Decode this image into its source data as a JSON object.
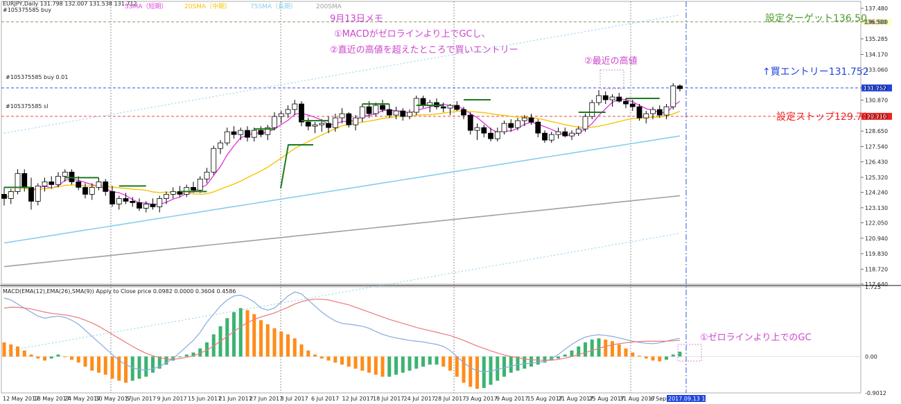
{
  "header": {
    "symbol_line": "EURJPY,Daily  131.798 132.007 131.538 131.712",
    "symbol_sub": "#105375585 buy",
    "legend": [
      {
        "label": "5SMA（短期）",
        "color": "#e040e0"
      },
      {
        "label": "20SMA（中期）",
        "color": "#f5c400"
      },
      {
        "label": "75SMA（長期）",
        "color": "#87ceeb"
      },
      {
        "label": "200SMA",
        "color": "#a0a0a0"
      }
    ]
  },
  "order_labels": {
    "buy": "#105375585 buy 0.01",
    "sl": "#105375585 sl"
  },
  "annotations": {
    "memo_title": "9月13日メモ",
    "memo_1": "①MACDがゼロラインより上でGCし、",
    "memo_2": "②直近の高値を超えたところで買いエントリー",
    "recent_high": "②最近の高値",
    "target": "設定ターゲット136.50",
    "entry": "↑買エントリー131.752",
    "stop": "設定ストップ129.71",
    "macd_gc": "①ゼロラインより上でのGC"
  },
  "colors": {
    "target": "#4a9a2a",
    "entry": "#2244dd",
    "stop": "#ee2222",
    "note": "#cc44cc",
    "sma5": "#e040e0",
    "sma20": "#f5c400",
    "sma75": "#87ceeb",
    "sma200": "#a0a0a0",
    "macd_up": "#3cb371",
    "macd_down": "#ff8c1a"
  },
  "chart_data": {
    "type": "candlestick",
    "price_axis": {
      "ticks": [
        "137.480",
        "136.500",
        "135.285",
        "134.170",
        "133.060",
        "131.752",
        "130.870",
        "129.710",
        "128.650",
        "127.540",
        "126.430",
        "125.320",
        "124.240",
        "123.130",
        "122.050",
        "120.940",
        "119.830",
        "118.720",
        "117.640"
      ],
      "ylim": [
        117.64,
        137.48
      ]
    },
    "levels": {
      "target": 136.5,
      "entry": 131.752,
      "stop": 129.71,
      "entry_tag": "131.752",
      "stop_tag": "129.710",
      "target_tag": "136.500"
    },
    "x_labels": [
      "12 May 2017",
      "18 May 2017",
      "24 May 2017",
      "30 May 2017",
      "5 Jun 2017",
      "9 Jun 2017",
      "15 Jun 2017",
      "21 Jun 2017",
      "27 Jun 2017",
      "3 Jul 2017",
      "6 Jul 2017",
      "12 Jul 2017",
      "18 Jul 2017",
      "24 Jul 2017",
      "28 Jul 2017",
      "3 Aug 2017",
      "9 Aug 2017",
      "15 Aug 2017",
      "21 Aug 2017",
      "25 Aug 2017",
      "31 Aug 2017",
      "6 Sep 2017"
    ],
    "cursor_label": "2017.09.13 19:59",
    "candles": [
      {
        "o": 124.1,
        "h": 124.6,
        "l": 123.3,
        "c": 123.8
      },
      {
        "o": 123.8,
        "h": 124.5,
        "l": 123.4,
        "c": 124.3
      },
      {
        "o": 124.3,
        "h": 125.9,
        "l": 124.1,
        "c": 125.6
      },
      {
        "o": 125.6,
        "h": 125.9,
        "l": 124.3,
        "c": 124.6
      },
      {
        "o": 124.6,
        "h": 125.3,
        "l": 123.0,
        "c": 123.6
      },
      {
        "o": 123.6,
        "h": 124.9,
        "l": 123.3,
        "c": 124.7
      },
      {
        "o": 124.7,
        "h": 125.3,
        "l": 124.3,
        "c": 125.0
      },
      {
        "o": 125.0,
        "h": 125.4,
        "l": 124.5,
        "c": 124.8
      },
      {
        "o": 124.8,
        "h": 125.7,
        "l": 124.6,
        "c": 125.4
      },
      {
        "o": 125.4,
        "h": 125.9,
        "l": 125.0,
        "c": 125.7
      },
      {
        "o": 125.7,
        "h": 125.9,
        "l": 124.8,
        "c": 125.0
      },
      {
        "o": 125.0,
        "h": 125.4,
        "l": 124.4,
        "c": 124.6
      },
      {
        "o": 124.6,
        "h": 124.9,
        "l": 123.8,
        "c": 124.1
      },
      {
        "o": 124.1,
        "h": 124.9,
        "l": 123.7,
        "c": 124.6
      },
      {
        "o": 124.6,
        "h": 125.3,
        "l": 124.4,
        "c": 125.0
      },
      {
        "o": 125.0,
        "h": 125.2,
        "l": 124.0,
        "c": 124.3
      },
      {
        "o": 124.3,
        "h": 124.7,
        "l": 123.2,
        "c": 123.4
      },
      {
        "o": 123.4,
        "h": 124.0,
        "l": 123.0,
        "c": 123.8
      },
      {
        "o": 123.8,
        "h": 124.2,
        "l": 123.4,
        "c": 123.6
      },
      {
        "o": 123.6,
        "h": 123.9,
        "l": 123.2,
        "c": 123.5
      },
      {
        "o": 123.5,
        "h": 123.8,
        "l": 122.9,
        "c": 123.1
      },
      {
        "o": 123.1,
        "h": 123.6,
        "l": 122.8,
        "c": 123.4
      },
      {
        "o": 123.4,
        "h": 123.8,
        "l": 123.0,
        "c": 123.2
      },
      {
        "o": 123.2,
        "h": 124.0,
        "l": 122.8,
        "c": 123.8
      },
      {
        "o": 123.8,
        "h": 124.3,
        "l": 123.4,
        "c": 124.1
      },
      {
        "o": 124.1,
        "h": 124.6,
        "l": 123.8,
        "c": 124.3
      },
      {
        "o": 124.3,
        "h": 124.7,
        "l": 123.9,
        "c": 124.1
      },
      {
        "o": 124.1,
        "h": 124.8,
        "l": 123.9,
        "c": 124.6
      },
      {
        "o": 124.6,
        "h": 125.0,
        "l": 124.2,
        "c": 124.4
      },
      {
        "o": 124.4,
        "h": 125.4,
        "l": 124.2,
        "c": 125.2
      },
      {
        "o": 125.2,
        "h": 126.0,
        "l": 124.9,
        "c": 125.7
      },
      {
        "o": 125.7,
        "h": 127.6,
        "l": 125.5,
        "c": 127.4
      },
      {
        "o": 127.4,
        "h": 128.0,
        "l": 127.0,
        "c": 127.8
      },
      {
        "o": 127.8,
        "h": 128.9,
        "l": 127.6,
        "c": 128.6
      },
      {
        "o": 128.6,
        "h": 129.0,
        "l": 128.1,
        "c": 128.4
      },
      {
        "o": 128.4,
        "h": 128.9,
        "l": 128.0,
        "c": 128.7
      },
      {
        "o": 128.7,
        "h": 129.0,
        "l": 127.9,
        "c": 128.2
      },
      {
        "o": 128.2,
        "h": 128.9,
        "l": 127.9,
        "c": 128.7
      },
      {
        "o": 128.7,
        "h": 129.0,
        "l": 128.2,
        "c": 128.4
      },
      {
        "o": 128.4,
        "h": 129.1,
        "l": 128.0,
        "c": 128.9
      },
      {
        "o": 128.9,
        "h": 130.0,
        "l": 128.7,
        "c": 129.7
      },
      {
        "o": 129.7,
        "h": 130.1,
        "l": 129.2,
        "c": 129.9
      },
      {
        "o": 129.9,
        "h": 130.5,
        "l": 129.6,
        "c": 130.2
      },
      {
        "o": 130.2,
        "h": 130.9,
        "l": 129.8,
        "c": 130.6
      },
      {
        "o": 130.6,
        "h": 130.8,
        "l": 129.0,
        "c": 129.3
      },
      {
        "o": 129.3,
        "h": 129.6,
        "l": 128.7,
        "c": 129.0
      },
      {
        "o": 129.0,
        "h": 129.3,
        "l": 128.5,
        "c": 129.1
      },
      {
        "o": 129.1,
        "h": 129.5,
        "l": 128.6,
        "c": 129.2
      },
      {
        "o": 129.2,
        "h": 129.7,
        "l": 128.5,
        "c": 128.9
      },
      {
        "o": 128.9,
        "h": 129.9,
        "l": 128.6,
        "c": 129.6
      },
      {
        "o": 129.6,
        "h": 130.3,
        "l": 129.2,
        "c": 129.9
      },
      {
        "o": 129.9,
        "h": 130.0,
        "l": 128.9,
        "c": 129.1
      },
      {
        "o": 129.1,
        "h": 129.8,
        "l": 128.7,
        "c": 129.6
      },
      {
        "o": 129.6,
        "h": 130.6,
        "l": 129.3,
        "c": 130.4
      },
      {
        "o": 130.4,
        "h": 130.8,
        "l": 129.6,
        "c": 129.9
      },
      {
        "o": 129.9,
        "h": 130.7,
        "l": 129.7,
        "c": 130.5
      },
      {
        "o": 130.5,
        "h": 130.9,
        "l": 130.0,
        "c": 130.2
      },
      {
        "o": 130.2,
        "h": 130.6,
        "l": 129.6,
        "c": 129.8
      },
      {
        "o": 129.8,
        "h": 130.4,
        "l": 129.5,
        "c": 130.1
      },
      {
        "o": 130.1,
        "h": 130.3,
        "l": 129.4,
        "c": 129.7
      },
      {
        "o": 129.7,
        "h": 130.2,
        "l": 129.5,
        "c": 130.0
      },
      {
        "o": 130.0,
        "h": 131.2,
        "l": 129.8,
        "c": 131.0
      },
      {
        "o": 131.0,
        "h": 131.2,
        "l": 130.3,
        "c": 130.5
      },
      {
        "o": 130.5,
        "h": 130.9,
        "l": 130.0,
        "c": 130.7
      },
      {
        "o": 130.7,
        "h": 131.0,
        "l": 130.2,
        "c": 130.4
      },
      {
        "o": 130.4,
        "h": 130.7,
        "l": 130.0,
        "c": 130.3
      },
      {
        "o": 130.3,
        "h": 130.6,
        "l": 129.8,
        "c": 130.5
      },
      {
        "o": 130.5,
        "h": 130.8,
        "l": 130.1,
        "c": 130.2
      },
      {
        "o": 130.2,
        "h": 130.4,
        "l": 129.5,
        "c": 129.8
      },
      {
        "o": 129.8,
        "h": 130.0,
        "l": 128.4,
        "c": 128.7
      },
      {
        "o": 128.7,
        "h": 129.2,
        "l": 128.0,
        "c": 128.9
      },
      {
        "o": 128.9,
        "h": 129.1,
        "l": 128.2,
        "c": 128.5
      },
      {
        "o": 128.5,
        "h": 128.9,
        "l": 127.9,
        "c": 128.1
      },
      {
        "o": 128.1,
        "h": 128.9,
        "l": 127.9,
        "c": 128.6
      },
      {
        "o": 128.6,
        "h": 129.4,
        "l": 128.4,
        "c": 129.2
      },
      {
        "o": 129.2,
        "h": 129.5,
        "l": 128.6,
        "c": 128.9
      },
      {
        "o": 128.9,
        "h": 129.6,
        "l": 128.7,
        "c": 129.4
      },
      {
        "o": 129.4,
        "h": 129.8,
        "l": 129.0,
        "c": 129.6
      },
      {
        "o": 129.6,
        "h": 129.9,
        "l": 129.1,
        "c": 129.3
      },
      {
        "o": 129.3,
        "h": 129.5,
        "l": 128.2,
        "c": 128.5
      },
      {
        "o": 128.5,
        "h": 128.7,
        "l": 127.8,
        "c": 128.0
      },
      {
        "o": 128.0,
        "h": 128.6,
        "l": 127.8,
        "c": 128.4
      },
      {
        "o": 128.4,
        "h": 128.9,
        "l": 128.1,
        "c": 128.6
      },
      {
        "o": 128.6,
        "h": 128.9,
        "l": 128.2,
        "c": 128.3
      },
      {
        "o": 128.3,
        "h": 128.7,
        "l": 128.0,
        "c": 128.5
      },
      {
        "o": 128.5,
        "h": 129.0,
        "l": 128.3,
        "c": 128.8
      },
      {
        "o": 128.8,
        "h": 129.9,
        "l": 128.6,
        "c": 129.7
      },
      {
        "o": 129.7,
        "h": 130.9,
        "l": 129.5,
        "c": 130.7
      },
      {
        "o": 130.7,
        "h": 131.6,
        "l": 130.5,
        "c": 131.2
      },
      {
        "o": 131.2,
        "h": 131.5,
        "l": 130.6,
        "c": 130.9
      },
      {
        "o": 130.9,
        "h": 131.3,
        "l": 130.4,
        "c": 131.1
      },
      {
        "o": 131.1,
        "h": 131.4,
        "l": 130.7,
        "c": 130.8
      },
      {
        "o": 130.8,
        "h": 131.0,
        "l": 130.3,
        "c": 130.6
      },
      {
        "o": 130.6,
        "h": 130.9,
        "l": 130.1,
        "c": 130.4
      },
      {
        "o": 130.4,
        "h": 130.6,
        "l": 129.4,
        "c": 129.6
      },
      {
        "o": 129.6,
        "h": 130.1,
        "l": 129.2,
        "c": 129.9
      },
      {
        "o": 129.9,
        "h": 130.4,
        "l": 129.5,
        "c": 130.2
      },
      {
        "o": 130.2,
        "h": 130.5,
        "l": 129.6,
        "c": 129.8
      },
      {
        "o": 129.8,
        "h": 130.6,
        "l": 129.5,
        "c": 130.4
      },
      {
        "o": 130.4,
        "h": 132.1,
        "l": 130.2,
        "c": 131.9
      },
      {
        "o": 131.9,
        "h": 132.0,
        "l": 131.5,
        "c": 131.7
      }
    ],
    "macd_panel": {
      "label": "MACD(EMA(12),EMA(26),SMA(9)) Apply to Close price 0.0982 0.0000 0.3604 0.4586",
      "ticks": [
        "1.725",
        "0.00",
        "-0.9012"
      ],
      "ylim": [
        -0.9012,
        1.725
      ],
      "histogram": [
        0.35,
        0.3,
        0.25,
        0.15,
        0.05,
        -0.05,
        -0.1,
        -0.05,
        0.05,
        0.0,
        -0.08,
        -0.15,
        -0.25,
        -0.35,
        -0.4,
        -0.45,
        -0.55,
        -0.6,
        -0.65,
        -0.6,
        -0.55,
        -0.5,
        -0.4,
        -0.3,
        -0.2,
        -0.1,
        0.0,
        0.05,
        0.1,
        0.2,
        0.35,
        0.55,
        0.75,
        0.95,
        1.1,
        1.2,
        1.15,
        1.05,
        0.9,
        0.8,
        0.7,
        0.62,
        0.55,
        0.45,
        0.3,
        0.15,
        0.05,
        -0.05,
        -0.1,
        -0.15,
        -0.2,
        -0.25,
        -0.3,
        -0.35,
        -0.4,
        -0.45,
        -0.5,
        -0.5,
        -0.45,
        -0.4,
        -0.35,
        -0.3,
        -0.25,
        -0.2,
        -0.2,
        -0.25,
        -0.35,
        -0.5,
        -0.65,
        -0.75,
        -0.8,
        -0.78,
        -0.7,
        -0.6,
        -0.5,
        -0.4,
        -0.35,
        -0.3,
        -0.25,
        -0.2,
        -0.15,
        -0.1,
        -0.05,
        0.05,
        0.15,
        0.25,
        0.35,
        0.42,
        0.45,
        0.42,
        0.38,
        0.3,
        0.2,
        0.1,
        0.02,
        -0.05,
        -0.1,
        -0.12,
        -0.08,
        0.05,
        0.12
      ],
      "macd_line": [
        1.45,
        1.4,
        1.3,
        1.2,
        1.1,
        1.0,
        0.95,
        0.98,
        1.0,
        0.97,
        0.9,
        0.8,
        0.65,
        0.5,
        0.35,
        0.2,
        0.05,
        -0.1,
        -0.2,
        -0.28,
        -0.32,
        -0.34,
        -0.3,
        -0.25,
        -0.15,
        -0.05,
        0.1,
        0.25,
        0.4,
        0.6,
        0.85,
        1.05,
        1.25,
        1.4,
        1.5,
        1.52,
        1.45,
        1.35,
        1.2,
        1.15,
        1.2,
        1.35,
        1.5,
        1.6,
        1.55,
        1.4,
        1.25,
        1.1,
        0.98,
        0.88,
        0.82,
        0.8,
        0.78,
        0.75,
        0.7,
        0.62,
        0.55,
        0.5,
        0.46,
        0.43,
        0.4,
        0.38,
        0.36,
        0.33,
        0.3,
        0.25,
        0.15,
        0.0,
        -0.15,
        -0.28,
        -0.35,
        -0.38,
        -0.36,
        -0.32,
        -0.28,
        -0.24,
        -0.2,
        -0.18,
        -0.16,
        -0.15,
        -0.12,
        -0.05,
        0.05,
        0.18,
        0.3,
        0.4,
        0.48,
        0.52,
        0.54,
        0.52,
        0.5,
        0.46,
        0.42,
        0.38,
        0.35,
        0.33,
        0.32,
        0.34,
        0.38,
        0.42,
        0.45
      ],
      "signal_line": [
        1.2,
        1.22,
        1.22,
        1.2,
        1.18,
        1.14,
        1.1,
        1.07,
        1.05,
        1.03,
        1.0,
        0.96,
        0.9,
        0.83,
        0.75,
        0.65,
        0.55,
        0.45,
        0.35,
        0.25,
        0.16,
        0.08,
        0.02,
        -0.03,
        -0.06,
        -0.07,
        -0.05,
        -0.02,
        0.02,
        0.08,
        0.16,
        0.26,
        0.38,
        0.5,
        0.62,
        0.74,
        0.84,
        0.92,
        0.98,
        1.03,
        1.08,
        1.15,
        1.22,
        1.3,
        1.36,
        1.4,
        1.42,
        1.42,
        1.4,
        1.36,
        1.32,
        1.28,
        1.22,
        1.16,
        1.1,
        1.04,
        0.98,
        0.92,
        0.87,
        0.82,
        0.77,
        0.72,
        0.68,
        0.64,
        0.6,
        0.56,
        0.52,
        0.46,
        0.4,
        0.33,
        0.26,
        0.2,
        0.14,
        0.09,
        0.04,
        0.0,
        -0.03,
        -0.06,
        -0.08,
        -0.09,
        -0.1,
        -0.09,
        -0.07,
        -0.04,
        0.0,
        0.05,
        0.1,
        0.15,
        0.2,
        0.25,
        0.29,
        0.32,
        0.34,
        0.36,
        0.37,
        0.38,
        0.38,
        0.38,
        0.38,
        0.39,
        0.4
      ]
    }
  }
}
